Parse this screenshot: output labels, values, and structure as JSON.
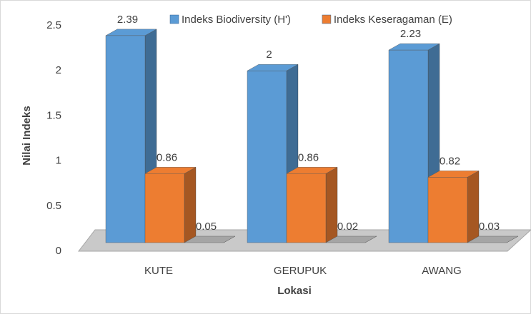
{
  "chart_data": {
    "type": "bar3d",
    "x_label": "Lokasi",
    "y_label": "Nilai Indeks",
    "categories": [
      "KUTE",
      "GERUPUK",
      "AWANG"
    ],
    "series": [
      {
        "name": "Indeks Biodiversity (H')",
        "color": "#5b9bd5",
        "values": [
          2.39,
          2,
          2.23
        ]
      },
      {
        "name": "Indeks Keseragaman (E)",
        "color": "#ed7d31",
        "values": [
          0.86,
          0.86,
          0.82
        ]
      },
      {
        "color": "#a5a5a5",
        "values": [
          0.05,
          0.02,
          0.03
        ]
      }
    ],
    "ylim": [
      0,
      2.5
    ],
    "yticks": [
      0,
      0.5,
      1,
      1.5,
      2,
      2.5
    ],
    "grid": false,
    "legend": "top"
  }
}
